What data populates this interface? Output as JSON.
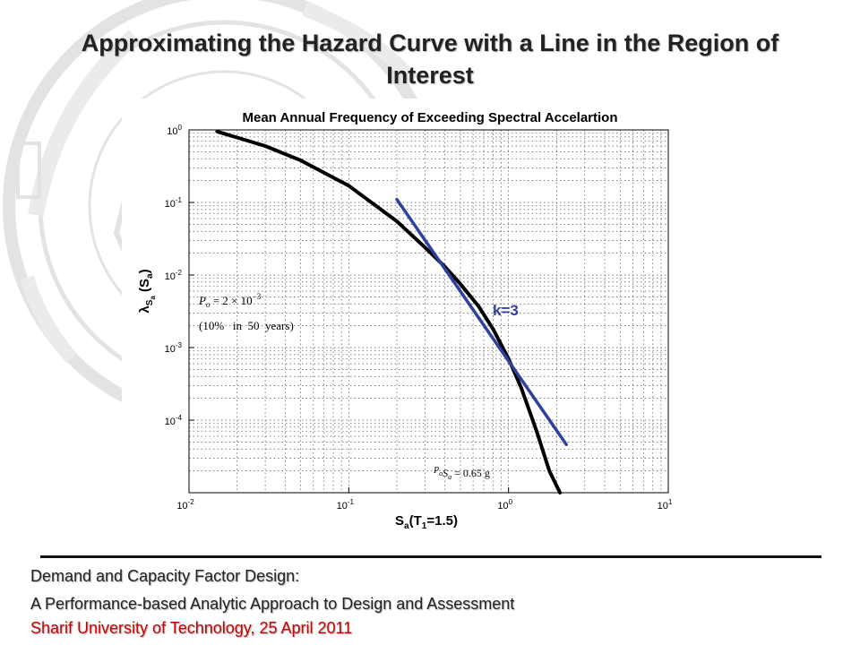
{
  "slide": {
    "title": "Approximating the Hazard Curve with a Line in the Region of Interest"
  },
  "footer": {
    "line1": "Demand and Capacity Factor Design:",
    "line2": "A Performance-based Analytic Approach to Design and Assessment",
    "line3": "Sharif University of Technology, 25 April 2011",
    "line3_color": "#cc0000"
  },
  "chart_data": {
    "type": "line",
    "title": "Mean Annual Frequency of Exceeding Spectral Accelartion",
    "xlabel_parts": {
      "main": "S",
      "sub": "a",
      "rest": "(T",
      "sub2": "1",
      "end": "=1.5)"
    },
    "ylabel_parts": {
      "main": "λ",
      "sub": "S",
      "subsub": "a",
      "rest": " (S",
      "sub2": "a",
      "end": ")"
    },
    "x_scale": "log",
    "y_scale": "log",
    "xlim": [
      0.01,
      10
    ],
    "ylim": [
      1e-05,
      1
    ],
    "x_ticks": [
      {
        "value": 0.01,
        "base": "10",
        "exp": "-2"
      },
      {
        "value": 0.1,
        "base": "10",
        "exp": "-1"
      },
      {
        "value": 1,
        "base": "10",
        "exp": "0"
      },
      {
        "value": 10,
        "base": "10",
        "exp": "1"
      }
    ],
    "y_ticks": [
      {
        "value": 1,
        "base": "10",
        "exp": "0"
      },
      {
        "value": 0.1,
        "base": "10",
        "exp": "-1"
      },
      {
        "value": 0.01,
        "base": "10",
        "exp": "-2"
      },
      {
        "value": 0.001,
        "base": "10",
        "exp": "-3"
      },
      {
        "value": 0.0001,
        "base": "10",
        "exp": "-4"
      }
    ],
    "grid": "dotted-minor",
    "series": [
      {
        "kind": "hazard-curve",
        "color": "#000000",
        "x": [
          0.015,
          0.03,
          0.05,
          0.1,
          0.2,
          0.3,
          0.4,
          0.5,
          0.65,
          0.8,
          1.0,
          1.2,
          1.5,
          1.8,
          2.1
        ],
        "y": [
          0.95,
          0.6,
          0.38,
          0.17,
          0.055,
          0.024,
          0.013,
          0.0075,
          0.0037,
          0.0018,
          0.0007,
          0.00028,
          7e-05,
          2e-05,
          1e-05
        ]
      },
      {
        "kind": "linear-approximation",
        "color": "#3040a0",
        "x": [
          0.2,
          2.3
        ],
        "y": [
          0.11,
          4.6e-05
        ]
      }
    ],
    "annotations": {
      "k_label": "k=3",
      "k_label_color": "#3040a0",
      "po_line1_lhs": "P",
      "po_line1_sub": "o",
      "po_line1_rest": " = 2 × 10",
      "po_line1_exp": "−3",
      "po_line2": "(10%   in  50  years)",
      "sa_label_p": "P",
      "sa_label_sub": "o",
      "sa_label_s": "S",
      "sa_label_ssub": "a",
      "sa_label_rest": " = 0.65 g"
    }
  }
}
